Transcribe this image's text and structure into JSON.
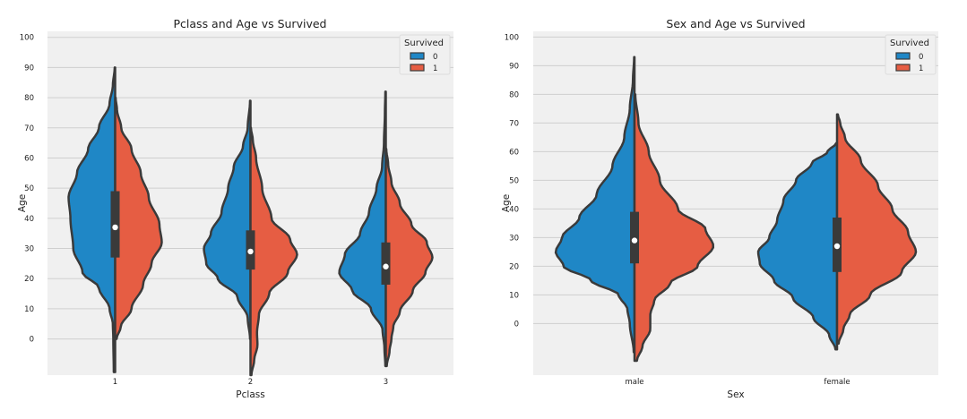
{
  "chart_data": [
    {
      "type": "violin",
      "title": "Pclass and Age vs Survived",
      "xlabel": "Pclass",
      "ylabel": "Age",
      "categories": [
        "1",
        "2",
        "3"
      ],
      "yticks": [
        "0",
        "10",
        "20",
        "30",
        "40",
        "50",
        "60",
        "70",
        "80",
        "90",
        "100"
      ],
      "ylim": [
        -12,
        102
      ],
      "grid": true,
      "legend": {
        "title": "Survived",
        "placement": "top-right",
        "entries": [
          "0",
          "1"
        ]
      },
      "split_by": "Survived",
      "colors": {
        "0": "#1f87c6",
        "1": "#e65d43",
        "outline": "#3a3a3a",
        "background": "#f0f0f0",
        "grid": "#cfcfcf"
      },
      "groups": [
        {
          "category": "1",
          "survived_0": {
            "min": -11,
            "max": 90,
            "profile": [
              [
                -11,
                0.03
              ],
              [
                0,
                0.04
              ],
              [
                5,
                0.05
              ],
              [
                10,
                0.12
              ],
              [
                17,
                0.35
              ],
              [
                22,
                0.7
              ],
              [
                30,
                0.9
              ],
              [
                40,
                0.96
              ],
              [
                47,
                1.0
              ],
              [
                55,
                0.82
              ],
              [
                63,
                0.58
              ],
              [
                70,
                0.35
              ],
              [
                78,
                0.12
              ],
              [
                84,
                0.05
              ],
              [
                90,
                0.01
              ]
            ]
          },
          "survived_1": {
            "min": 0,
            "max": 80,
            "profile": [
              [
                0,
                0.03
              ],
              [
                4,
                0.12
              ],
              [
                10,
                0.35
              ],
              [
                18,
                0.6
              ],
              [
                25,
                0.78
              ],
              [
                32,
                1.0
              ],
              [
                38,
                0.95
              ],
              [
                47,
                0.72
              ],
              [
                55,
                0.55
              ],
              [
                63,
                0.35
              ],
              [
                70,
                0.13
              ],
              [
                76,
                0.04
              ],
              [
                80,
                0.01
              ]
            ]
          },
          "box": {
            "q1": 27,
            "median": 37,
            "q3": 49
          }
        },
        {
          "category": "2",
          "survived_0": {
            "min": 0,
            "max": 79,
            "profile": [
              [
                0,
                0.01
              ],
              [
                7,
                0.06
              ],
              [
                14,
                0.28
              ],
              [
                20,
                0.7
              ],
              [
                25,
                0.95
              ],
              [
                30,
                1.0
              ],
              [
                35,
                0.85
              ],
              [
                42,
                0.62
              ],
              [
                50,
                0.48
              ],
              [
                57,
                0.36
              ],
              [
                64,
                0.16
              ],
              [
                70,
                0.06
              ],
              [
                79,
                0.01
              ]
            ]
          },
          "survived_1": {
            "min": -12,
            "max": 70,
            "profile": [
              [
                -12,
                0.02
              ],
              [
                -7,
                0.08
              ],
              [
                -2,
                0.15
              ],
              [
                2,
                0.14
              ],
              [
                8,
                0.18
              ],
              [
                15,
                0.4
              ],
              [
                22,
                0.8
              ],
              [
                28,
                1.0
              ],
              [
                33,
                0.85
              ],
              [
                40,
                0.45
              ],
              [
                50,
                0.25
              ],
              [
                60,
                0.12
              ],
              [
                66,
                0.05
              ],
              [
                70,
                0.01
              ]
            ]
          },
          "box": {
            "q1": 23,
            "median": 29,
            "q3": 36
          }
        },
        {
          "category": "3",
          "survived_0": {
            "min": -9,
            "max": 82,
            "profile": [
              [
                -9,
                0.01
              ],
              [
                -3,
                0.03
              ],
              [
                3,
                0.07
              ],
              [
                10,
                0.32
              ],
              [
                16,
                0.72
              ],
              [
                22,
                1.0
              ],
              [
                28,
                0.88
              ],
              [
                35,
                0.55
              ],
              [
                42,
                0.36
              ],
              [
                50,
                0.2
              ],
              [
                57,
                0.08
              ],
              [
                65,
                0.04
              ],
              [
                75,
                0.02
              ],
              [
                82,
                0.01
              ]
            ]
          },
          "survived_1": {
            "min": -9,
            "max": 63,
            "profile": [
              [
                -9,
                0.02
              ],
              [
                -4,
                0.08
              ],
              [
                0,
                0.12
              ],
              [
                4,
                0.16
              ],
              [
                9,
                0.3
              ],
              [
                16,
                0.58
              ],
              [
                22,
                0.85
              ],
              [
                27,
                1.0
              ],
              [
                32,
                0.88
              ],
              [
                38,
                0.55
              ],
              [
                45,
                0.3
              ],
              [
                52,
                0.12
              ],
              [
                58,
                0.05
              ],
              [
                63,
                0.01
              ]
            ]
          },
          "box": {
            "q1": 18,
            "median": 24,
            "q3": 32
          }
        }
      ]
    },
    {
      "type": "violin",
      "title": "Sex and Age vs Survived",
      "xlabel": "Sex",
      "ylabel": "Age",
      "categories": [
        "male",
        "female"
      ],
      "yticks": [
        "0",
        "10",
        "20",
        "30",
        "40",
        "50",
        "60",
        "70",
        "80",
        "90",
        "100"
      ],
      "ylim": [
        -18,
        102
      ],
      "grid": true,
      "legend": {
        "title": "Survived",
        "placement": "top-right",
        "entries": [
          "0",
          "1"
        ]
      },
      "split_by": "Survived",
      "colors": {
        "0": "#1f87c6",
        "1": "#e65d43",
        "outline": "#3a3a3a",
        "background": "#f0f0f0",
        "grid": "#cfcfcf"
      },
      "groups": [
        {
          "category": "male",
          "survived_0": {
            "min": -10,
            "max": 93,
            "profile": [
              [
                -10,
                0.01
              ],
              [
                0,
                0.06
              ],
              [
                5,
                0.09
              ],
              [
                10,
                0.2
              ],
              [
                15,
                0.55
              ],
              [
                20,
                0.9
              ],
              [
                25,
                1.0
              ],
              [
                30,
                0.92
              ],
              [
                37,
                0.7
              ],
              [
                45,
                0.48
              ],
              [
                55,
                0.28
              ],
              [
                65,
                0.13
              ],
              [
                75,
                0.06
              ],
              [
                85,
                0.02
              ],
              [
                93,
                0.005
              ]
            ]
          },
          "survived_1": {
            "min": -13,
            "max": 80,
            "profile": [
              [
                -13,
                0.03
              ],
              [
                -8,
                0.1
              ],
              [
                -2,
                0.2
              ],
              [
                3,
                0.2
              ],
              [
                8,
                0.25
              ],
              [
                14,
                0.45
              ],
              [
                20,
                0.8
              ],
              [
                27,
                1.0
              ],
              [
                33,
                0.9
              ],
              [
                40,
                0.55
              ],
              [
                50,
                0.32
              ],
              [
                60,
                0.18
              ],
              [
                70,
                0.05
              ],
              [
                80,
                0.01
              ]
            ]
          },
          "box": {
            "q1": 21,
            "median": 29,
            "q3": 39
          }
        },
        {
          "category": "female",
          "survived_0": {
            "min": -9,
            "max": 63,
            "profile": [
              [
                -9,
                0.02
              ],
              [
                -4,
                0.1
              ],
              [
                2,
                0.3
              ],
              [
                9,
                0.56
              ],
              [
                15,
                0.8
              ],
              [
                21,
                0.98
              ],
              [
                25,
                1.0
              ],
              [
                30,
                0.86
              ],
              [
                36,
                0.76
              ],
              [
                43,
                0.68
              ],
              [
                50,
                0.52
              ],
              [
                56,
                0.32
              ],
              [
                60,
                0.12
              ],
              [
                63,
                0.01
              ]
            ]
          },
          "survived_1": {
            "min": -7,
            "max": 73,
            "profile": [
              [
                -7,
                0.02
              ],
              [
                -2,
                0.08
              ],
              [
                3,
                0.16
              ],
              [
                10,
                0.42
              ],
              [
                18,
                0.82
              ],
              [
                25,
                1.0
              ],
              [
                32,
                0.9
              ],
              [
                40,
                0.7
              ],
              [
                48,
                0.52
              ],
              [
                57,
                0.3
              ],
              [
                65,
                0.1
              ],
              [
                70,
                0.04
              ],
              [
                73,
                0.01
              ]
            ]
          },
          "box": {
            "q1": 18,
            "median": 27,
            "q3": 37
          }
        }
      ]
    }
  ]
}
